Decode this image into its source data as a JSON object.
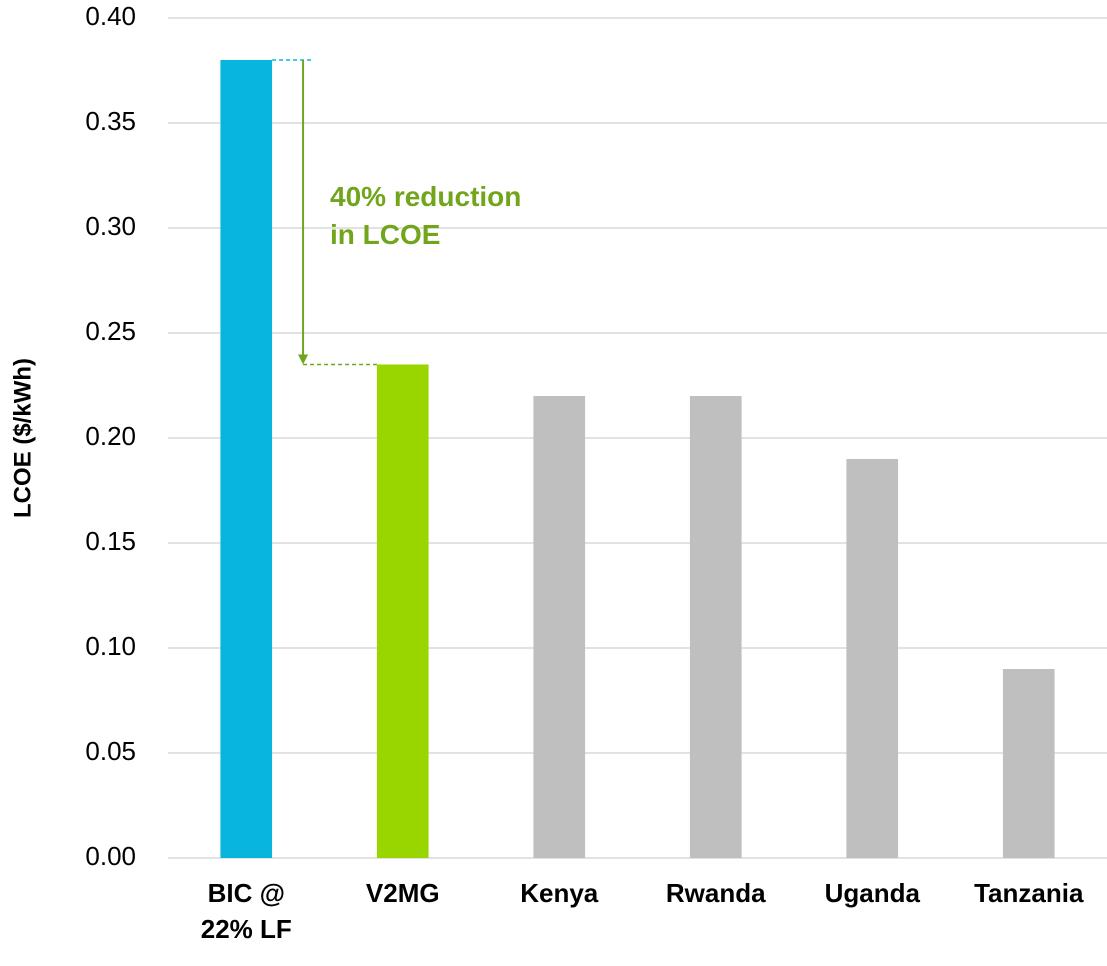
{
  "chart_data": {
    "type": "bar",
    "y_label": "LCOE ($/kWh)",
    "annotation": "40% reduction\nin LCOE",
    "categories": [
      "BIC @\n22% LF",
      "V2MG",
      "Kenya",
      "Rwanda",
      "Uganda",
      "Tanzania"
    ],
    "values": [
      0.38,
      0.235,
      0.22,
      0.22,
      0.19,
      0.09
    ],
    "colors": [
      "#07b5dd",
      "#99d600",
      "#bfbfbf",
      "#bfbfbf",
      "#bfbfbf",
      "#bfbfbf"
    ],
    "annotation_color": "#70a51c",
    "ylim": [
      0,
      0.4
    ],
    "yticks": [
      {
        "value": 0,
        "label": "0.00"
      },
      {
        "value": 0.05,
        "label": "0.05"
      },
      {
        "value": 0.1,
        "label": "0.10"
      },
      {
        "value": 0.15,
        "label": "0.15"
      },
      {
        "value": 0.2,
        "label": "0.20"
      },
      {
        "value": 0.25,
        "label": "0.25"
      },
      {
        "value": 0.3,
        "label": "0.30"
      },
      {
        "value": 0.35,
        "label": "0.35"
      },
      {
        "value": 0.4,
        "label": "0.40"
      }
    ],
    "grid": true
  }
}
